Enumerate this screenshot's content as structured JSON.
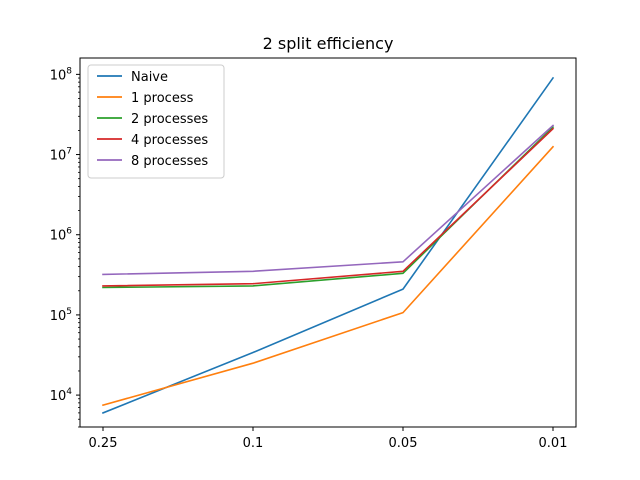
{
  "chart_data": {
    "type": "line",
    "title": "2 split efficiency",
    "xlabel": "",
    "ylabel": "",
    "categories": [
      "0.25",
      "0.1",
      "0.05",
      "0.01"
    ],
    "yscale": "log",
    "ylim": [
      4000,
      160000000
    ],
    "y_ticks": [
      {
        "value": 10000,
        "base": "10",
        "exp": "4"
      },
      {
        "value": 100000,
        "base": "10",
        "exp": "5"
      },
      {
        "value": 1000000,
        "base": "10",
        "exp": "6"
      },
      {
        "value": 10000000,
        "base": "10",
        "exp": "7"
      },
      {
        "value": 100000000,
        "base": "10",
        "exp": "8"
      }
    ],
    "grid": false,
    "legend_position": "top-left",
    "series": [
      {
        "name": "Naive",
        "color": "#1f77b4",
        "values": [
          6000,
          34000,
          210000,
          90000000
        ]
      },
      {
        "name": "1 process",
        "color": "#ff7f0e",
        "values": [
          7500,
          25000,
          107000,
          12500000
        ]
      },
      {
        "name": "2 processes",
        "color": "#2ca02c",
        "values": [
          220000,
          230000,
          330000,
          22000000
        ]
      },
      {
        "name": "4 processes",
        "color": "#d62728",
        "values": [
          230000,
          245000,
          350000,
          21000000
        ]
      },
      {
        "name": "8 processes",
        "color": "#9467bd",
        "values": [
          320000,
          350000,
          460000,
          23000000
        ]
      }
    ]
  }
}
